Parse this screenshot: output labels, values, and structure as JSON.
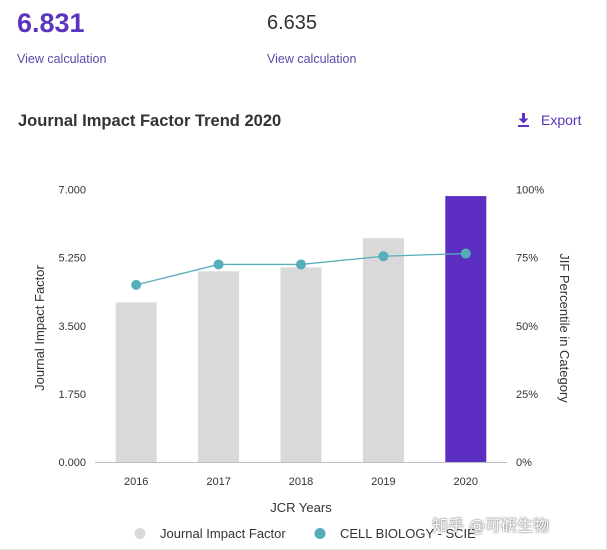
{
  "metrics": {
    "left": {
      "value": "6.831",
      "link": "View calculation"
    },
    "right": {
      "value": "6.635",
      "link": "View calculation"
    }
  },
  "section": {
    "title": "Journal Impact Factor Trend 2020",
    "export_label": "Export",
    "export_icon": "download-icon"
  },
  "colors": {
    "accent": "#5b35bd",
    "bar_default": "#d9d9d9",
    "bar_highlight": "#5c2fc2",
    "line": "#56aeba",
    "axis_text": "#333333"
  },
  "chart_data": {
    "type": "bar",
    "title": "Journal Impact Factor Trend 2020",
    "xlabel": "JCR Years",
    "ylabel": "Journal Impact Factor",
    "y2label": "JIF Percentile in Category",
    "categories": [
      "2016",
      "2017",
      "2018",
      "2019",
      "2020"
    ],
    "ylim": [
      0,
      7
    ],
    "yticks": [
      "0.000",
      "1.750",
      "3.500",
      "5.250",
      "7.000"
    ],
    "y2lim": [
      0,
      100
    ],
    "y2ticks": [
      "0%",
      "25%",
      "50%",
      "75%",
      "100%"
    ],
    "highlight_category": "2020",
    "series": [
      {
        "name": "Journal Impact Factor",
        "type": "bar",
        "axis": "left",
        "values": [
          4.1,
          4.9,
          5.0,
          5.75,
          6.831
        ]
      },
      {
        "name": "CELL BIOLOGY - SCIE",
        "type": "line",
        "axis": "right",
        "values": [
          65.0,
          72.5,
          72.5,
          75.5,
          76.5
        ]
      }
    ],
    "legend": [
      "Journal Impact Factor",
      "CELL BIOLOGY - SCIE"
    ],
    "legend_position": "bottom",
    "grid": false
  },
  "watermark": "知乎 @可研生物"
}
